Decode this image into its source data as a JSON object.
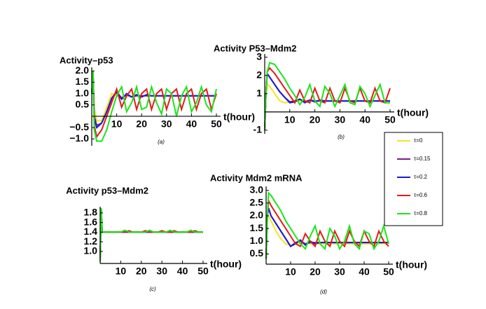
{
  "chart_data": [
    {
      "type": "line",
      "title": "Activity–p53",
      "x_label": "t(hour)",
      "caption": "(a)",
      "x": [
        0,
        0.5,
        1,
        2,
        4,
        6,
        8,
        10,
        12,
        14,
        16,
        18,
        20,
        22,
        24,
        26,
        28,
        30,
        32,
        34,
        36,
        38,
        40,
        42,
        44,
        46,
        48,
        50
      ],
      "xlim": [
        0,
        50
      ],
      "xticks": [
        10,
        20,
        30,
        40,
        50
      ],
      "ylim": [
        -1.3,
        2.1
      ],
      "yticks": [
        {
          "value": -1,
          "label": "−1.0"
        },
        {
          "value": -0.5,
          "label": "−0.5"
        },
        0.5,
        {
          "value": 1,
          "label": "1.0"
        },
        1.5,
        {
          "value": 2,
          "label": "2.0"
        }
      ],
      "series": [
        {
          "name": "τ=0",
          "color": "#f5e616",
          "values": [
            1.0,
            2.0,
            0.3,
            -0.2,
            -0.2,
            0.4,
            1.0,
            0.9,
            0.85,
            0.9,
            0.9,
            0.9,
            0.9,
            0.9,
            0.9,
            0.9,
            0.9,
            0.9,
            0.9,
            0.9,
            0.9,
            0.9,
            0.9,
            0.9,
            0.9,
            0.9,
            0.9,
            0.9
          ]
        },
        {
          "name": "τ=0.15",
          "color": "#7a1a8c",
          "values": [
            1.0,
            2.0,
            0.0,
            -0.4,
            -0.3,
            0.2,
            0.8,
            1.1,
            0.8,
            0.95,
            0.85,
            0.9,
            0.9,
            0.9,
            0.9,
            0.9,
            0.9,
            0.9,
            0.9,
            0.9,
            0.9,
            0.9,
            0.9,
            0.9,
            0.9,
            0.9,
            0.9,
            0.9
          ]
        },
        {
          "name": "τ=0.2",
          "color": "#1a1ad6",
          "values": [
            1.0,
            2.0,
            -0.1,
            -0.5,
            -0.3,
            0.2,
            0.8,
            1.05,
            0.75,
            1.0,
            0.85,
            0.95,
            0.85,
            0.95,
            0.9,
            0.9,
            0.9,
            0.9,
            0.9,
            0.9,
            0.9,
            0.9,
            0.9,
            0.9,
            0.9,
            0.9,
            0.9,
            0.9
          ]
        },
        {
          "name": "τ=0.6",
          "color": "#e61a1a",
          "values": [
            1.0,
            2.0,
            -0.4,
            -0.9,
            -0.6,
            0.0,
            0.6,
            1.2,
            0.4,
            0.9,
            1.2,
            0.3,
            1.0,
            1.2,
            0.3,
            1.0,
            1.2,
            0.3,
            1.0,
            1.2,
            0.3,
            1.0,
            1.2,
            0.3,
            1.0,
            1.2,
            0.3,
            1.0
          ]
        },
        {
          "name": "τ=0.8",
          "color": "#1ae61a",
          "values": [
            1.0,
            2.0,
            -0.6,
            -1.1,
            -1.1,
            -0.6,
            0.2,
            0.9,
            1.3,
            0.2,
            0.6,
            1.3,
            0.3,
            0.4,
            1.3,
            0.6,
            0.1,
            1.2,
            1.0,
            0.0,
            0.9,
            1.3,
            0.2,
            0.6,
            1.3,
            0.5,
            0.2,
            1.2
          ]
        }
      ]
    },
    {
      "type": "line",
      "title": "Activity P53–Mdm2",
      "x_label": "t(hour)",
      "caption": "(b)",
      "x": [
        0,
        0.5,
        1,
        2,
        4,
        6,
        8,
        10,
        12,
        14,
        16,
        18,
        20,
        22,
        24,
        26,
        28,
        30,
        32,
        34,
        36,
        38,
        40,
        42,
        44,
        46,
        48,
        50
      ],
      "xlim": [
        0,
        50
      ],
      "xticks": [
        10,
        20,
        30,
        40,
        50
      ],
      "ylim": [
        -1.2,
        3.1
      ],
      "yticks": [
        -1,
        1,
        2,
        3
      ],
      "series": [
        {
          "name": "τ=0",
          "color": "#f5e616",
          "values": [
            -1.0,
            1.0,
            1.5,
            1.4,
            1.0,
            0.6,
            0.5,
            0.55,
            0.6,
            0.6,
            0.6,
            0.6,
            0.6,
            0.6,
            0.6,
            0.6,
            0.6,
            0.6,
            0.6,
            0.6,
            0.6,
            0.6,
            0.6,
            0.6,
            0.6,
            0.6,
            0.6,
            0.6
          ]
        },
        {
          "name": "τ=0.15",
          "color": "#7a1a8c",
          "values": [
            -1.0,
            1.0,
            2.1,
            1.9,
            1.5,
            1.1,
            0.8,
            0.55,
            0.6,
            0.7,
            0.55,
            0.65,
            0.6,
            0.6,
            0.6,
            0.6,
            0.6,
            0.6,
            0.6,
            0.6,
            0.6,
            0.6,
            0.6,
            0.6,
            0.6,
            0.6,
            0.6,
            0.6
          ]
        },
        {
          "name": "τ=0.2",
          "color": "#1a1ad6",
          "values": [
            -1.0,
            1.0,
            2.1,
            1.9,
            1.5,
            1.1,
            0.8,
            0.5,
            0.55,
            0.7,
            0.5,
            0.65,
            0.55,
            0.65,
            0.6,
            0.6,
            0.6,
            0.6,
            0.6,
            0.6,
            0.6,
            0.6,
            0.6,
            0.6,
            0.6,
            0.6,
            0.6,
            0.6
          ]
        },
        {
          "name": "τ=0.6",
          "color": "#e61a1a",
          "values": [
            -1.0,
            1.0,
            2.2,
            2.4,
            2.1,
            1.7,
            1.3,
            0.9,
            0.5,
            1.2,
            0.6,
            0.5,
            1.3,
            0.6,
            0.5,
            1.3,
            0.6,
            0.5,
            1.3,
            0.6,
            0.5,
            1.3,
            0.6,
            0.5,
            1.3,
            0.6,
            0.5,
            1.3
          ]
        },
        {
          "name": "τ=0.8",
          "color": "#1ae61a",
          "values": [
            -1.0,
            1.0,
            2.2,
            2.7,
            2.6,
            2.2,
            1.8,
            1.3,
            0.9,
            0.4,
            0.8,
            1.5,
            0.6,
            0.3,
            1.4,
            1.0,
            0.3,
            0.9,
            1.5,
            0.5,
            0.4,
            1.4,
            1.0,
            0.3,
            0.9,
            1.5,
            0.5,
            0.5
          ]
        }
      ]
    },
    {
      "type": "line",
      "title": "Activity p53–Mdm2",
      "x_label": "t(hour)",
      "caption": "(c)",
      "x": [
        0,
        0.5,
        1,
        2,
        4,
        6,
        8,
        10,
        12,
        14,
        16,
        18,
        20,
        22,
        24,
        26,
        28,
        30,
        32,
        34,
        36,
        38,
        40,
        42,
        44,
        46,
        48,
        50
      ],
      "xlim": [
        0,
        50
      ],
      "xticks": [
        10,
        20,
        30,
        40,
        50
      ],
      "ylim": [
        0.75,
        1.9
      ],
      "yticks": [
        {
          "value": 1,
          "label": "1.0"
        },
        1.2,
        1.4,
        1.6,
        1.8
      ],
      "series": [
        {
          "name": "τ=0",
          "color": "#f5e616",
          "values": [
            0.8,
            1.9,
            1.4,
            1.4,
            1.4,
            1.4,
            1.4,
            1.4,
            1.4,
            1.4,
            1.4,
            1.4,
            1.4,
            1.4,
            1.4,
            1.4,
            1.4,
            1.4,
            1.4,
            1.4,
            1.4,
            1.4,
            1.4,
            1.4,
            1.4,
            1.4,
            1.4,
            1.4
          ]
        },
        {
          "name": "τ=0.15",
          "color": "#7a1a8c",
          "values": [
            0.8,
            1.9,
            1.4,
            1.4,
            1.4,
            1.4,
            1.4,
            1.4,
            1.4,
            1.4,
            1.4,
            1.4,
            1.4,
            1.4,
            1.4,
            1.4,
            1.4,
            1.4,
            1.4,
            1.4,
            1.4,
            1.4,
            1.4,
            1.4,
            1.4,
            1.4,
            1.4,
            1.4
          ]
        },
        {
          "name": "τ=0.2",
          "color": "#1a1ad6",
          "values": [
            0.8,
            1.9,
            1.4,
            1.4,
            1.4,
            1.4,
            1.4,
            1.4,
            1.4,
            1.4,
            1.4,
            1.4,
            1.4,
            1.4,
            1.4,
            1.4,
            1.4,
            1.4,
            1.4,
            1.4,
            1.4,
            1.4,
            1.4,
            1.4,
            1.4,
            1.4,
            1.4,
            1.4
          ]
        },
        {
          "name": "τ=0.6",
          "color": "#e61a1a",
          "values": [
            0.8,
            1.9,
            1.4,
            1.4,
            1.4,
            1.4,
            1.4,
            1.4,
            1.4,
            1.43,
            1.4,
            1.4,
            1.4,
            1.43,
            1.4,
            1.4,
            1.4,
            1.43,
            1.4,
            1.4,
            1.43,
            1.4,
            1.4,
            1.4,
            1.4,
            1.43,
            1.4,
            1.4
          ]
        },
        {
          "name": "τ=0.8",
          "color": "#1ae61a",
          "values": [
            0.8,
            1.9,
            1.4,
            1.4,
            1.4,
            1.4,
            1.4,
            1.4,
            1.44,
            1.4,
            1.4,
            1.4,
            1.4,
            1.4,
            1.44,
            1.4,
            1.4,
            1.4,
            1.4,
            1.44,
            1.4,
            1.4,
            1.4,
            1.4,
            1.44,
            1.4,
            1.4,
            1.4
          ]
        }
      ]
    },
    {
      "type": "line",
      "title": "Activity Mdm2 mRNA",
      "x_label": "t(hour)",
      "caption": "(d)",
      "x": [
        0,
        0.5,
        1,
        2,
        4,
        6,
        8,
        10,
        12,
        14,
        16,
        18,
        20,
        22,
        24,
        26,
        28,
        30,
        32,
        34,
        36,
        38,
        40,
        42,
        44,
        46,
        48,
        50
      ],
      "xlim": [
        0,
        50
      ],
      "xticks": [
        10,
        20,
        30,
        40,
        50
      ],
      "ylim": [
        0.1,
        3.1
      ],
      "yticks": [
        0.5,
        {
          "value": 1,
          "label": "1.0"
        },
        1.5,
        {
          "value": 2,
          "label": "2.0"
        },
        2.5,
        {
          "value": 3,
          "label": "3.0"
        }
      ],
      "series": [
        {
          "name": "τ=0",
          "color": "#f5e616",
          "values": [
            0.3,
            2.0,
            2.0,
            1.8,
            1.4,
            1.1,
            0.9,
            0.85,
            0.9,
            0.9,
            0.9,
            0.9,
            0.9,
            0.9,
            0.9,
            0.9,
            0.9,
            0.9,
            0.9,
            0.9,
            0.9,
            0.9,
            0.9,
            0.9,
            0.9,
            0.9,
            0.9,
            0.9
          ]
        },
        {
          "name": "τ=0.15",
          "color": "#7a1a8c",
          "values": [
            0.3,
            2.0,
            2.3,
            2.0,
            1.7,
            1.4,
            1.1,
            0.8,
            0.95,
            1.0,
            0.9,
            0.95,
            0.95,
            0.95,
            0.95,
            0.95,
            0.95,
            0.95,
            0.95,
            0.95,
            0.95,
            0.95,
            0.95,
            0.95,
            0.95,
            0.95,
            0.95,
            0.95
          ]
        },
        {
          "name": "τ=0.2",
          "color": "#1a1ad6",
          "values": [
            0.3,
            2.0,
            2.3,
            2.0,
            1.7,
            1.4,
            1.1,
            0.8,
            0.9,
            1.05,
            0.85,
            1.0,
            0.9,
            0.95,
            0.95,
            0.95,
            0.95,
            0.95,
            0.95,
            0.95,
            0.95,
            0.95,
            0.95,
            0.95,
            0.95,
            0.95,
            0.95,
            0.95
          ]
        },
        {
          "name": "τ=0.6",
          "color": "#e61a1a",
          "values": [
            0.3,
            2.0,
            2.6,
            2.4,
            2.1,
            1.8,
            1.5,
            1.2,
            0.9,
            0.8,
            1.3,
            1.0,
            0.8,
            1.4,
            1.0,
            0.8,
            1.4,
            1.0,
            0.8,
            1.4,
            1.0,
            0.8,
            1.4,
            1.0,
            0.8,
            1.4,
            1.0,
            0.8
          ]
        },
        {
          "name": "τ=0.8",
          "color": "#1ae61a",
          "values": [
            0.3,
            2.0,
            2.9,
            2.8,
            2.5,
            2.2,
            1.8,
            1.5,
            1.2,
            0.9,
            0.7,
            1.2,
            1.6,
            0.9,
            0.7,
            1.5,
            1.2,
            0.7,
            1.0,
            1.6,
            0.9,
            0.7,
            1.4,
            1.3,
            0.7,
            1.0,
            1.6,
            0.9
          ]
        }
      ]
    }
  ]
}
